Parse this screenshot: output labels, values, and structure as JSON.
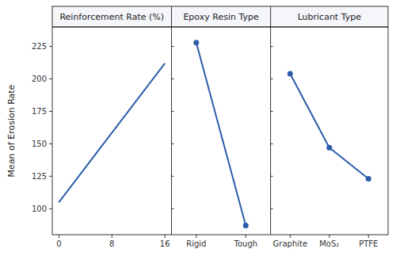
{
  "chart_data": [
    {
      "type": "line",
      "title": "Reinforcement Rate (%)",
      "ylabel": "Mean of Erosion Rate",
      "x": [
        0,
        16
      ],
      "values": [
        105,
        212
      ],
      "xlim": [
        -1,
        17
      ],
      "xticks": [
        0,
        8,
        16
      ],
      "ylim": [
        80,
        240
      ],
      "yticks": [
        100,
        125,
        150,
        175,
        200,
        225
      ],
      "color": "#2b5ca8",
      "marker": "none"
    },
    {
      "type": "line",
      "title": "Epoxy Resin Type",
      "categories": [
        "Rigid",
        "Tough"
      ],
      "values": [
        228,
        87
      ],
      "ylim": [
        80,
        240
      ],
      "yticks": [
        100,
        125,
        150,
        175,
        200,
        225
      ],
      "color": "#2b5ca8",
      "marker": "circle"
    },
    {
      "type": "line",
      "title": "Lubricant Type",
      "categories": [
        "Graphite",
        "MoS₂",
        "PTFE"
      ],
      "values": [
        204,
        147,
        123
      ],
      "ylim": [
        80,
        240
      ],
      "yticks": [
        100,
        125,
        150,
        175,
        200,
        225
      ],
      "color": "#2b5ca8",
      "marker": "circle"
    }
  ]
}
